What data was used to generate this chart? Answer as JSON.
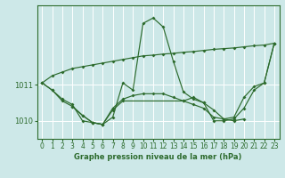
{
  "title": "Graphe pression niveau de la mer (hPa)",
  "bg_color": "#cde8e8",
  "grid_color": "#ffffff",
  "line_color": "#2d6b2d",
  "xlim": [
    -0.5,
    23.5
  ],
  "ylim": [
    1009.5,
    1013.2
  ],
  "yticks": [
    1010,
    1011
  ],
  "xticks": [
    0,
    1,
    2,
    3,
    4,
    5,
    6,
    7,
    8,
    9,
    10,
    11,
    12,
    13,
    14,
    15,
    16,
    17,
    18,
    19,
    20,
    21,
    22,
    23
  ],
  "line1_x": [
    0,
    1,
    2,
    3,
    4,
    5,
    6,
    7,
    8,
    9,
    10,
    11,
    12,
    13,
    14,
    15,
    16,
    17,
    18,
    19,
    20,
    21,
    22,
    23
  ],
  "line1_y": [
    1011.05,
    1011.25,
    1011.35,
    1011.45,
    1011.5,
    1011.55,
    1011.6,
    1011.65,
    1011.7,
    1011.75,
    1011.8,
    1011.82,
    1011.85,
    1011.87,
    1011.9,
    1011.92,
    1011.95,
    1011.98,
    1012.0,
    1012.02,
    1012.05,
    1012.08,
    1012.1,
    1012.15
  ],
  "line2_x": [
    0,
    1,
    2,
    3,
    4,
    5,
    6,
    7,
    8,
    9,
    10,
    11,
    12,
    13,
    14,
    15,
    16,
    17,
    18,
    19,
    20,
    21,
    22,
    23
  ],
  "line2_y": [
    1011.05,
    1010.85,
    1010.6,
    1010.45,
    1010.0,
    1009.95,
    1009.9,
    1010.1,
    1011.05,
    1010.85,
    1012.7,
    1012.85,
    1012.6,
    1011.65,
    1010.8,
    1010.6,
    1010.5,
    1010.3,
    1010.05,
    1010.1,
    1010.65,
    1010.95,
    1011.05,
    1012.15
  ],
  "line3_x": [
    0,
    1,
    2,
    3,
    4,
    5,
    6,
    7,
    8,
    14,
    15,
    16,
    17,
    18,
    19,
    20,
    21,
    22,
    23
  ],
  "line3_y": [
    1011.05,
    1010.85,
    1010.55,
    1010.4,
    1010.15,
    1009.95,
    1009.9,
    1010.3,
    1010.55,
    1010.55,
    1010.65,
    1010.5,
    1010.0,
    1010.0,
    1010.05,
    1010.35,
    1010.85,
    1011.05,
    1012.15
  ],
  "line4_x": [
    3,
    4,
    5,
    6,
    7,
    8,
    9,
    10,
    11,
    12,
    13,
    14,
    15,
    16,
    17,
    18,
    19,
    20
  ],
  "line4_y": [
    1010.4,
    1010.15,
    1009.95,
    1009.9,
    1010.35,
    1010.6,
    1010.7,
    1010.75,
    1010.75,
    1010.75,
    1010.65,
    1010.55,
    1010.45,
    1010.35,
    1010.1,
    1010.05,
    1010.0,
    1010.05
  ]
}
